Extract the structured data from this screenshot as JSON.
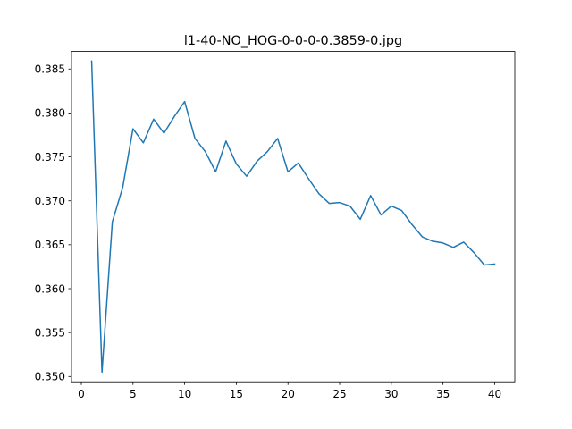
{
  "chart_data": {
    "type": "line",
    "title": "l1-40-NO_HOG-0-0-0-0.3859-0.jpg",
    "xlabel": "",
    "ylabel": "",
    "xlim": [
      -0.95,
      41.95
    ],
    "ylim": [
      0.3494,
      0.387
    ],
    "xticks": [
      0,
      5,
      10,
      15,
      20,
      25,
      30,
      35,
      40
    ],
    "yticks": [
      0.35,
      0.355,
      0.36,
      0.365,
      0.37,
      0.375,
      0.38,
      0.385
    ],
    "xtick_labels": [
      "0",
      "5",
      "10",
      "15",
      "20",
      "25",
      "30",
      "35",
      "40"
    ],
    "ytick_labels": [
      "0.350",
      "0.355",
      "0.360",
      "0.365",
      "0.370",
      "0.375",
      "0.380",
      "0.385"
    ],
    "grid": false,
    "legend": "none",
    "series": [
      {
        "color": "#1f77b4",
        "x": [
          1,
          2,
          3,
          4,
          5,
          6,
          7,
          8,
          9,
          10,
          11,
          12,
          13,
          14,
          15,
          16,
          17,
          18,
          19,
          20,
          21,
          22,
          23,
          24,
          25,
          26,
          27,
          28,
          29,
          30,
          31,
          32,
          33,
          34,
          35,
          36,
          37,
          38,
          39,
          40
        ],
        "y": [
          0.3859,
          0.3505,
          0.3676,
          0.3715,
          0.3782,
          0.3766,
          0.3793,
          0.3777,
          0.3796,
          0.3813,
          0.3771,
          0.3756,
          0.3733,
          0.3768,
          0.3742,
          0.3728,
          0.3745,
          0.3756,
          0.3771,
          0.3733,
          0.3743,
          0.3725,
          0.3708,
          0.3697,
          0.3698,
          0.3694,
          0.3679,
          0.3706,
          0.3684,
          0.3694,
          0.3689,
          0.3673,
          0.3659,
          0.3654,
          0.3652,
          0.3647,
          0.3653,
          0.3641,
          0.3627,
          0.3628
        ]
      }
    ]
  }
}
